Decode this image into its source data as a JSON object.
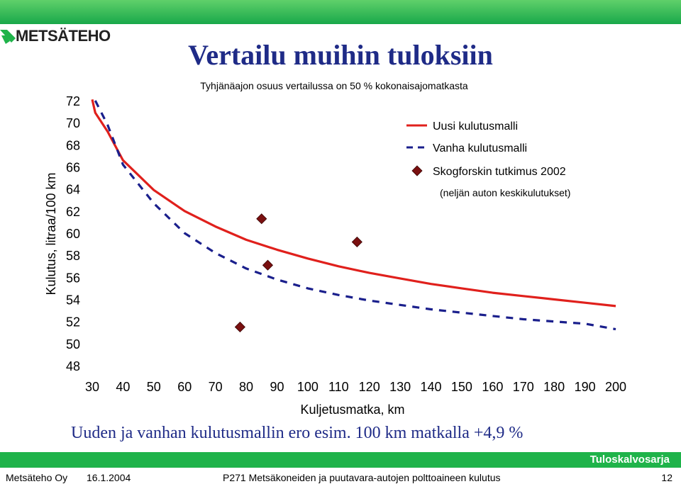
{
  "brand": {
    "logo_text": "METSÄTEHO"
  },
  "slide": {
    "title": "Vertailu muihin tuloksiin",
    "subtitle": "Tyhjänäajon osuus vertailussa on 50 % kokonaisajomatkasta",
    "conclusion": "Uuden ja vanhan kulutusmallin ero esim. 100 km matkalla +4,9 %",
    "series_name": "Tuloskalvosarja"
  },
  "footer": {
    "org": "Metsäteho Oy",
    "date": "16.1.2004",
    "project": "P271 Metsäkoneiden ja puutavara-autojen polttoaineen kulutus",
    "page": "12"
  },
  "colors": {
    "green": "#1fb34a",
    "title_blue": "#1f2b87",
    "red": "#e0201c",
    "navy": "#1a1f8c",
    "maroon": "#7a1010"
  },
  "chart_data": {
    "type": "line",
    "xlabel": "Kuljetusmatka, km",
    "ylabel": "Kulutus, litraa/100 km",
    "xlim": [
      30,
      200
    ],
    "ylim": [
      48,
      72
    ],
    "x_ticks": [
      30,
      40,
      50,
      60,
      70,
      80,
      90,
      100,
      110,
      120,
      130,
      140,
      150,
      160,
      170,
      180,
      190,
      200
    ],
    "y_ticks": [
      48,
      50,
      52,
      54,
      56,
      58,
      60,
      62,
      64,
      66,
      68,
      70,
      72
    ],
    "grid": false,
    "legend_position": "top-right",
    "series": [
      {
        "name": "Uusi kulutusmalli",
        "style": "solid",
        "color": "#e0201c",
        "x": [
          30,
          31,
          35,
          40,
          50,
          60,
          70,
          80,
          90,
          100,
          110,
          120,
          130,
          140,
          150,
          160,
          170,
          180,
          190,
          200
        ],
        "y": [
          72.1,
          70.9,
          69.2,
          66.6,
          63.9,
          62.0,
          60.6,
          59.4,
          58.5,
          57.7,
          57.0,
          56.4,
          55.9,
          55.4,
          55.0,
          54.6,
          54.3,
          54.0,
          53.7,
          53.4
        ]
      },
      {
        "name": "Vanha kulutusmalli",
        "style": "dashed",
        "color": "#1a1f8c",
        "x": [
          31,
          35,
          40,
          50,
          60,
          70,
          80,
          90,
          100,
          110,
          120,
          130,
          140,
          150,
          160,
          170,
          180,
          190,
          200
        ],
        "y": [
          72.0,
          69.8,
          66.2,
          62.7,
          60.0,
          58.2,
          56.8,
          55.8,
          55.0,
          54.4,
          53.9,
          53.5,
          53.1,
          52.8,
          52.5,
          52.2,
          52.0,
          51.8,
          51.3
        ]
      },
      {
        "name": "Skogforskin tutkimus 2002",
        "style": "markers",
        "color": "#7a1010",
        "x": [
          78,
          85,
          87,
          116
        ],
        "y": [
          51.5,
          61.3,
          57.1,
          59.2
        ]
      }
    ],
    "legend_note": "(neljän auton keskikulutukset)"
  }
}
